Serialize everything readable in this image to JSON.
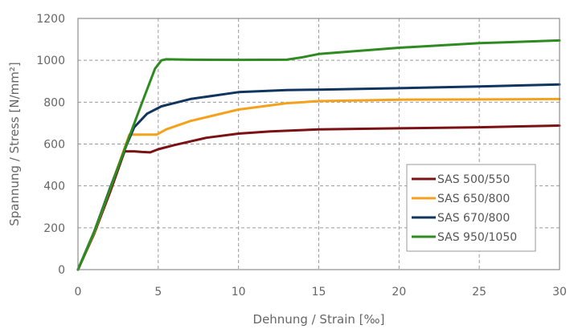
{
  "chart_data": {
    "type": "line",
    "xlabel": "Dehnung / Strain [‰]",
    "ylabel": "Spannung / Stress [N/mm²]",
    "xlim": [
      0,
      30
    ],
    "ylim": [
      0,
      1200
    ],
    "x_ticks": [
      "0",
      "5",
      "10",
      "15",
      "20",
      "25",
      "30"
    ],
    "y_ticks": [
      "0",
      "200",
      "400",
      "600",
      "800",
      "1000",
      "1200"
    ],
    "grid": "on (dashed)",
    "legend_position": "bottom-right",
    "series": [
      {
        "name": "SAS 500/550",
        "color": "#7b1113",
        "points": [
          [
            0,
            0
          ],
          [
            1,
            170
          ],
          [
            2,
            370
          ],
          [
            2.9,
            565
          ],
          [
            3.5,
            565
          ],
          [
            4,
            562
          ],
          [
            4.5,
            560
          ],
          [
            5,
            575
          ],
          [
            6,
            595
          ],
          [
            8,
            630
          ],
          [
            10,
            650
          ],
          [
            12,
            660
          ],
          [
            15,
            670
          ],
          [
            20,
            675
          ],
          [
            25,
            680
          ],
          [
            30,
            688
          ]
        ]
      },
      {
        "name": "SAS 650/800",
        "color": "#f4a11d",
        "points": [
          [
            0,
            0
          ],
          [
            1,
            175
          ],
          [
            2,
            385
          ],
          [
            3.2,
            645
          ],
          [
            4,
            645
          ],
          [
            4.9,
            645
          ],
          [
            5.5,
            670
          ],
          [
            7,
            710
          ],
          [
            10,
            765
          ],
          [
            13,
            795
          ],
          [
            15,
            805
          ],
          [
            20,
            812
          ],
          [
            25,
            813
          ],
          [
            30,
            815
          ]
        ]
      },
      {
        "name": "SAS 670/800",
        "color": "#10355f",
        "points": [
          [
            0,
            0
          ],
          [
            1,
            180
          ],
          [
            2,
            390
          ],
          [
            3,
            590
          ],
          [
            3.5,
            680
          ],
          [
            4.3,
            745
          ],
          [
            5.2,
            780
          ],
          [
            7,
            815
          ],
          [
            10,
            848
          ],
          [
            13,
            858
          ],
          [
            15,
            860
          ],
          [
            20,
            867
          ],
          [
            25,
            875
          ],
          [
            30,
            885
          ]
        ]
      },
      {
        "name": "SAS 950/1050",
        "color": "#2e8b1f",
        "points": [
          [
            0,
            0
          ],
          [
            1,
            180
          ],
          [
            2,
            385
          ],
          [
            3,
            595
          ],
          [
            4,
            800
          ],
          [
            4.8,
            960
          ],
          [
            5.2,
            1000
          ],
          [
            5.5,
            1005
          ],
          [
            7,
            1003
          ],
          [
            10,
            1002
          ],
          [
            13,
            1003
          ],
          [
            14,
            1015
          ],
          [
            15,
            1030
          ],
          [
            20,
            1060
          ],
          [
            25,
            1082
          ],
          [
            30,
            1095
          ]
        ]
      }
    ]
  }
}
